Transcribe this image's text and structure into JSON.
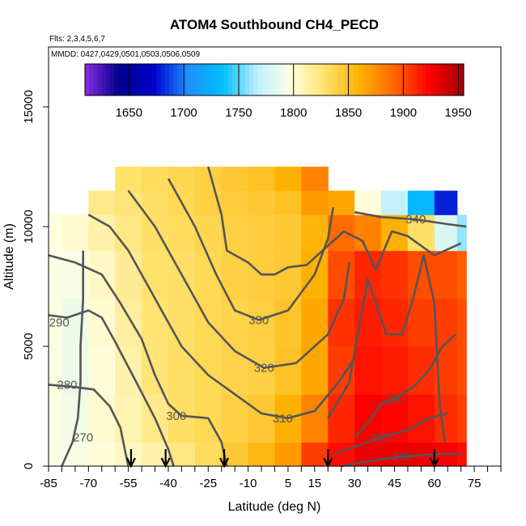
{
  "chart_data": {
    "type": "heatmap",
    "title": "ATOM4 Southbound CH4_PECD",
    "flights_note": "Flts: 2,3,4,5,6,7",
    "dates_note": "MMDD: 0427,0429,0501,0503,0506,0509",
    "xlabel": "Latitude (deg N)",
    "ylabel": "Altitude (m)",
    "xlim": [
      -85,
      85
    ],
    "ylim": [
      0,
      17500
    ],
    "x_ticks": [
      -85,
      -70,
      -55,
      -40,
      -25,
      -10,
      5,
      15,
      30,
      45,
      60,
      75
    ],
    "x_tick_labels": [
      "-85",
      "-70",
      "-55",
      "-40",
      "-25",
      "-10",
      "5",
      "15",
      "30",
      "45",
      "60",
      "75"
    ],
    "y_ticks": [
      0,
      5000,
      10000,
      15000
    ],
    "y_tick_labels": [
      "0",
      "5000",
      "10000",
      "15000"
    ],
    "colorbar": {
      "min": 1610,
      "max": 1955,
      "ticks": [
        1650,
        1700,
        1750,
        1800,
        1850,
        1900,
        1950
      ],
      "tick_labels": [
        "1650",
        "1700",
        "1750",
        "1800",
        "1850",
        "1900",
        "1950"
      ],
      "colors": [
        "#8a2be2",
        "#00008b",
        "#0000cd",
        "#1e90ff",
        "#00bfff",
        "#bfefff",
        "#ffffe0",
        "#ffe066",
        "#ffb000",
        "#ff6600",
        "#ff0000",
        "#a00000"
      ]
    },
    "ch4_field": {
      "latitude": [
        -85,
        -75,
        -65,
        -55,
        -45,
        -35,
        -25,
        -15,
        -5,
        5,
        15,
        25,
        35,
        45,
        55,
        65,
        72
      ],
      "altitude": [
        0,
        2000,
        4000,
        6000,
        8000,
        10000,
        11000,
        12000
      ],
      "values_ppb": [
        [
          1795,
          1795,
          1800,
          1805,
          1812,
          1822,
          1832,
          1845,
          1855,
          1870,
          1905,
          1920,
          1930,
          1930,
          1930,
          1925,
          1920
        ],
        [
          1795,
          1792,
          1802,
          1810,
          1820,
          1830,
          1835,
          1840,
          1845,
          1860,
          1880,
          1912,
          1925,
          1922,
          1918,
          1910,
          1905
        ],
        [
          1795,
          1790,
          1800,
          1812,
          1825,
          1830,
          1835,
          1838,
          1840,
          1850,
          1865,
          1905,
          1918,
          1915,
          1910,
          1905,
          1900
        ],
        [
          1795,
          1790,
          1802,
          1815,
          1826,
          1830,
          1835,
          1838,
          1840,
          1848,
          1865,
          1908,
          1915,
          1912,
          1905,
          1905,
          1900
        ],
        [
          1795,
          1795,
          1805,
          1818,
          1828,
          1830,
          1835,
          1840,
          1842,
          1845,
          1860,
          1900,
          1912,
          1908,
          1900,
          1900,
          1895
        ],
        [
          1798,
          1802,
          1812,
          1822,
          1830,
          1832,
          1836,
          1840,
          1842,
          1845,
          1858,
          1890,
          1880,
          1860,
          1830,
          1780,
          1760
        ],
        [
          null,
          null,
          1820,
          1825,
          1830,
          1835,
          1840,
          1842,
          1845,
          1850,
          1870,
          1865,
          1800,
          1770,
          1730,
          1680,
          null
        ],
        [
          null,
          null,
          null,
          1828,
          1832,
          1836,
          1840,
          1845,
          1850,
          1860,
          1880,
          null,
          null,
          null,
          null,
          null,
          null
        ]
      ]
    },
    "theta_contours": [
      {
        "label": "270",
        "label_at": [
          -72,
          1200
        ],
        "points": [
          [
            -80,
            0
          ],
          [
            -76,
            1000
          ],
          [
            -74,
            2000
          ],
          [
            -73,
            3500
          ],
          [
            -73,
            5000
          ],
          [
            -72,
            7000
          ],
          [
            -72,
            9000
          ]
        ]
      },
      {
        "label": "280",
        "label_at": [
          -78,
          3400
        ],
        "points": [
          [
            -85,
            3400
          ],
          [
            -75,
            3300
          ],
          [
            -68,
            3200
          ],
          [
            -62,
            2500
          ],
          [
            -58,
            1600
          ],
          [
            -56,
            500
          ],
          [
            -55,
            0
          ]
        ]
      },
      {
        "label": "290",
        "label_at": [
          -81,
          6000
        ],
        "points": [
          [
            -85,
            6300
          ],
          [
            -78,
            6200
          ],
          [
            -70,
            6500
          ],
          [
            -65,
            6200
          ],
          [
            -60,
            5200
          ],
          [
            -52,
            3500
          ],
          [
            -45,
            2000
          ],
          [
            -40,
            700
          ],
          [
            -38,
            0
          ]
        ]
      },
      {
        "label": "300",
        "label_at": [
          -37,
          2100
        ],
        "points": [
          [
            -85,
            8800
          ],
          [
            -75,
            8500
          ],
          [
            -65,
            8000
          ],
          [
            -58,
            6800
          ],
          [
            -50,
            5300
          ],
          [
            -45,
            3800
          ],
          [
            -40,
            2600
          ],
          [
            -35,
            2100
          ],
          [
            -25,
            2000
          ],
          [
            -20,
            1000
          ],
          [
            -18,
            0
          ]
        ]
      },
      {
        "label": "310",
        "label_at": [
          3,
          2000
        ],
        "points": [
          [
            -70,
            10500
          ],
          [
            -62,
            10000
          ],
          [
            -55,
            9000
          ],
          [
            -45,
            7000
          ],
          [
            -35,
            5000
          ],
          [
            -25,
            3800
          ],
          [
            -15,
            3000
          ],
          [
            -5,
            2200
          ],
          [
            5,
            2000
          ],
          [
            15,
            2300
          ],
          [
            24,
            3500
          ],
          [
            30,
            4500
          ]
        ]
      },
      {
        "label": "320",
        "label_at": [
          -4,
          4100
        ],
        "points": [
          [
            -55,
            11500
          ],
          [
            -45,
            10000
          ],
          [
            -35,
            8000
          ],
          [
            -25,
            6000
          ],
          [
            -15,
            4800
          ],
          [
            -4,
            4100
          ],
          [
            8,
            4300
          ],
          [
            20,
            5500
          ],
          [
            26,
            7000
          ],
          [
            28,
            8500
          ]
        ]
      },
      {
        "label": "330",
        "label_at": [
          -6,
          6100
        ],
        "points": [
          [
            -40,
            12000
          ],
          [
            -30,
            10000
          ],
          [
            -22,
            8000
          ],
          [
            -15,
            6500
          ],
          [
            -6,
            6100
          ],
          [
            5,
            6500
          ],
          [
            15,
            8000
          ],
          [
            20,
            9500
          ],
          [
            22,
            10800
          ]
        ]
      },
      {
        "label": "340",
        "label_at": [
          53,
          10300
        ],
        "points": [
          [
            30,
            10600
          ],
          [
            40,
            10400
          ],
          [
            53,
            10300
          ],
          [
            65,
            10100
          ],
          [
            72,
            10000
          ]
        ]
      },
      {
        "label": "300",
        "label_at": [
          45,
          2800
        ],
        "points": [
          [
            30,
            1200
          ],
          [
            35,
            1800
          ],
          [
            40,
            2600
          ],
          [
            45,
            2800
          ],
          [
            52,
            3300
          ],
          [
            58,
            4000
          ],
          [
            63,
            5000
          ],
          [
            68,
            5500
          ]
        ]
      },
      {
        "label": "290",
        "label_at": [
          40,
          1200
        ],
        "points": [
          [
            22,
            500
          ],
          [
            30,
            800
          ],
          [
            40,
            1200
          ],
          [
            50,
            1500
          ],
          [
            58,
            2000
          ],
          [
            65,
            2200
          ]
        ]
      },
      {
        "label": "280",
        "label_at": [
          48,
          400
        ],
        "points": [
          [
            25,
            0
          ],
          [
            35,
            200
          ],
          [
            48,
            400
          ],
          [
            60,
            500
          ],
          [
            70,
            500
          ]
        ]
      },
      {
        "label": "",
        "label_at": [
          0,
          0
        ],
        "points": [
          [
            -25,
            12500
          ],
          [
            -20,
            10500
          ],
          [
            -18,
            9000
          ],
          [
            -10,
            8500
          ],
          [
            -5,
            8000
          ],
          [
            0,
            8000
          ],
          [
            5,
            8300
          ],
          [
            12,
            8400
          ],
          [
            20,
            9200
          ],
          [
            26,
            9800
          ],
          [
            33,
            9400
          ],
          [
            38,
            8200
          ],
          [
            44,
            9800
          ],
          [
            50,
            9600
          ],
          [
            60,
            8800
          ],
          [
            70,
            9300
          ]
        ]
      },
      {
        "label": "",
        "label_at": [
          0,
          0
        ],
        "points": [
          [
            20,
            2000
          ],
          [
            28,
            3500
          ],
          [
            32,
            6000
          ],
          [
            35,
            7800
          ],
          [
            42,
            5500
          ],
          [
            48,
            5500
          ],
          [
            52,
            7000
          ],
          [
            56,
            8800
          ],
          [
            60,
            6800
          ],
          [
            62,
            2500
          ],
          [
            64,
            1000
          ]
        ]
      }
    ],
    "sonde_arrows_lat": [
      -54,
      -41,
      -19,
      20,
      60
    ],
    "grid": false,
    "legend": "colorbar top, inside plot"
  }
}
